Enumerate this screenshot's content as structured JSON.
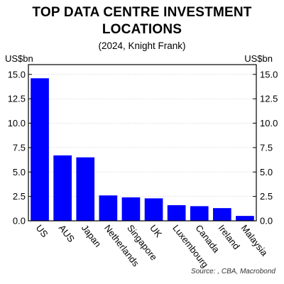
{
  "header": {
    "title_line1": "TOP DATA CENTRE INVESTMENT",
    "title_line2": "LOCATIONS",
    "subtitle": "(2024, Knight Frank)"
  },
  "footer": {
    "source": "Source: , CBA, Macrobond"
  },
  "chart_data": {
    "type": "bar",
    "title": "TOP DATA CENTRE INVESTMENT LOCATIONS",
    "subtitle": "(2024, Knight Frank)",
    "ylabel_left": "US$bn",
    "ylabel_right": "US$bn",
    "categories": [
      "US",
      "AUS",
      "Japan",
      "Netherlands",
      "Singapore",
      "UK",
      "Luxembourg",
      "Canada",
      "Ireland",
      "Malaysia"
    ],
    "values": [
      14.6,
      6.7,
      6.5,
      2.6,
      2.4,
      2.3,
      1.6,
      1.5,
      1.3,
      0.5
    ],
    "ylim": [
      0,
      16
    ],
    "yticks": [
      "0.0",
      "2.5",
      "5.0",
      "7.5",
      "10.0",
      "12.5",
      "15.0"
    ],
    "bar_color": "#0000ff",
    "grid": true,
    "legend": "none"
  }
}
